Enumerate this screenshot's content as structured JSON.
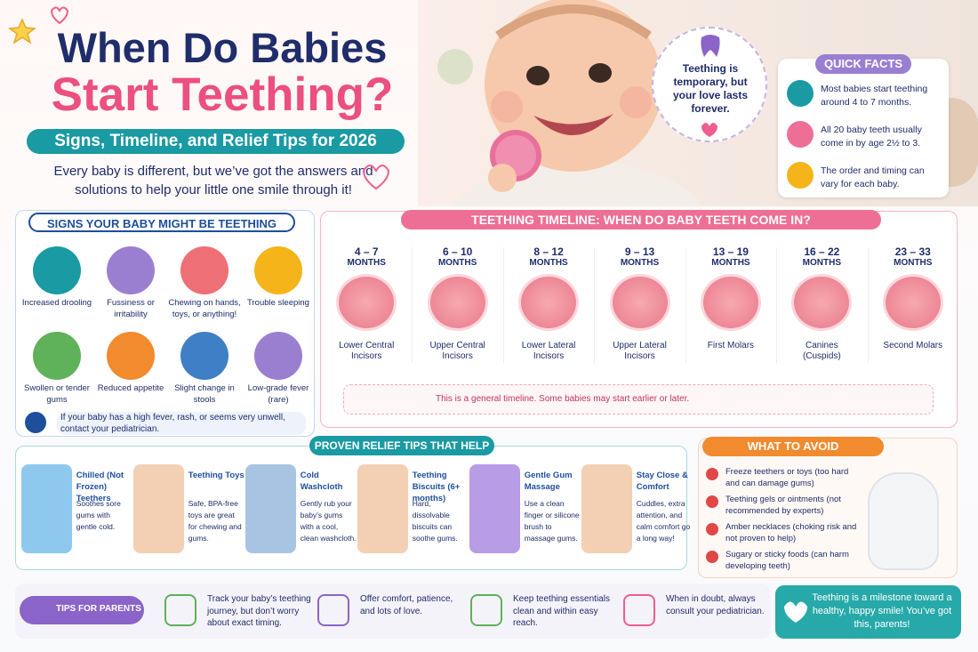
{
  "header": {
    "title_line1": "When Do Babies",
    "title_line2": "Start Teething?",
    "subtitle": "Signs, Timeline, and Relief Tips for 2026",
    "intro": "Every baby is different, but we’ve got the answers and solutions to help your little one smile through it!"
  },
  "quote": "Teething is temporary, but your love lasts forever.",
  "quick_facts": {
    "title": "QUICK FACTS",
    "items": [
      "Most babies start teething around 4 to 7 months.",
      "All 20 baby teeth usually come in by age 2½ to 3.",
      "The order and timing can vary for each baby."
    ]
  },
  "signs": {
    "title": "SIGNS YOUR BABY MIGHT BE TEETHING",
    "items": [
      "Increased drooling",
      "Fussiness or irritability",
      "Chewing on hands, toys, or anything!",
      "Trouble sleeping",
      "Swollen or tender gums",
      "Reduced appetite",
      "Slight change in stools",
      "Low-grade fever (rare)"
    ],
    "note": "If your baby has a high fever, rash, or seems very unwell, contact your pediatrician."
  },
  "timeline": {
    "title": "TEETHING TIMELINE: WHEN DO BABY TEETH COME IN?",
    "stages": [
      {
        "age": "4 – 7",
        "unit": "MONTHS",
        "label": "Lower Central Incisors"
      },
      {
        "age": "6 – 10",
        "unit": "MONTHS",
        "label": "Upper Central Incisors"
      },
      {
        "age": "8 – 12",
        "unit": "MONTHS",
        "label": "Lower Lateral Incisors"
      },
      {
        "age": "9 – 13",
        "unit": "MONTHS",
        "label": "Upper Lateral Incisors"
      },
      {
        "age": "13 – 19",
        "unit": "MONTHS",
        "label": "First Molars"
      },
      {
        "age": "16 – 22",
        "unit": "MONTHS",
        "label": "Canines (Cuspids)"
      },
      {
        "age": "23 – 33",
        "unit": "MONTHS",
        "label": "Second Molars"
      }
    ],
    "note": "This is a general timeline. Some babies may start earlier or later."
  },
  "relief": {
    "title": "PROVEN RELIEF TIPS THAT HELP",
    "tips": [
      {
        "name": "Chilled (Not Frozen) Teethers",
        "text": "Soothes sore gums with gentle cold."
      },
      {
        "name": "Teething Toys",
        "text": "Safe, BPA-free toys are great for chewing and gums."
      },
      {
        "name": "Cold Washcloth",
        "text": "Gently rub your baby’s gums with a cool, clean washcloth."
      },
      {
        "name": "Teething Biscuits (6+ months)",
        "text": "Hard, dissolvable biscuits can soothe gums."
      },
      {
        "name": "Gentle Gum Massage",
        "text": "Use a clean finger or silicone brush to massage gums."
      },
      {
        "name": "Stay Close & Comfort",
        "text": "Cuddles, extra attention, and calm comfort go a long way!"
      }
    ]
  },
  "avoid": {
    "title": "WHAT TO AVOID",
    "items": [
      "Freeze teethers or toys (too hard and can damage gums)",
      "Teething gels or ointments (not recommended by experts)",
      "Amber necklaces (choking risk and not proven to help)",
      "Sugary or sticky foods (can harm developing teeth)"
    ]
  },
  "parents": {
    "title": "TIPS FOR PARENTS",
    "items": [
      "Track your baby’s teething journey, but don’t worry about exact timing.",
      "Offer comfort, patience, and lots of love.",
      "Keep teething essentials clean and within easy reach.",
      "When in doubt, always consult your pediatrician."
    ]
  },
  "closing": "Teething is a milestone toward a healthy, happy smile! You’ve got this, parents!"
}
